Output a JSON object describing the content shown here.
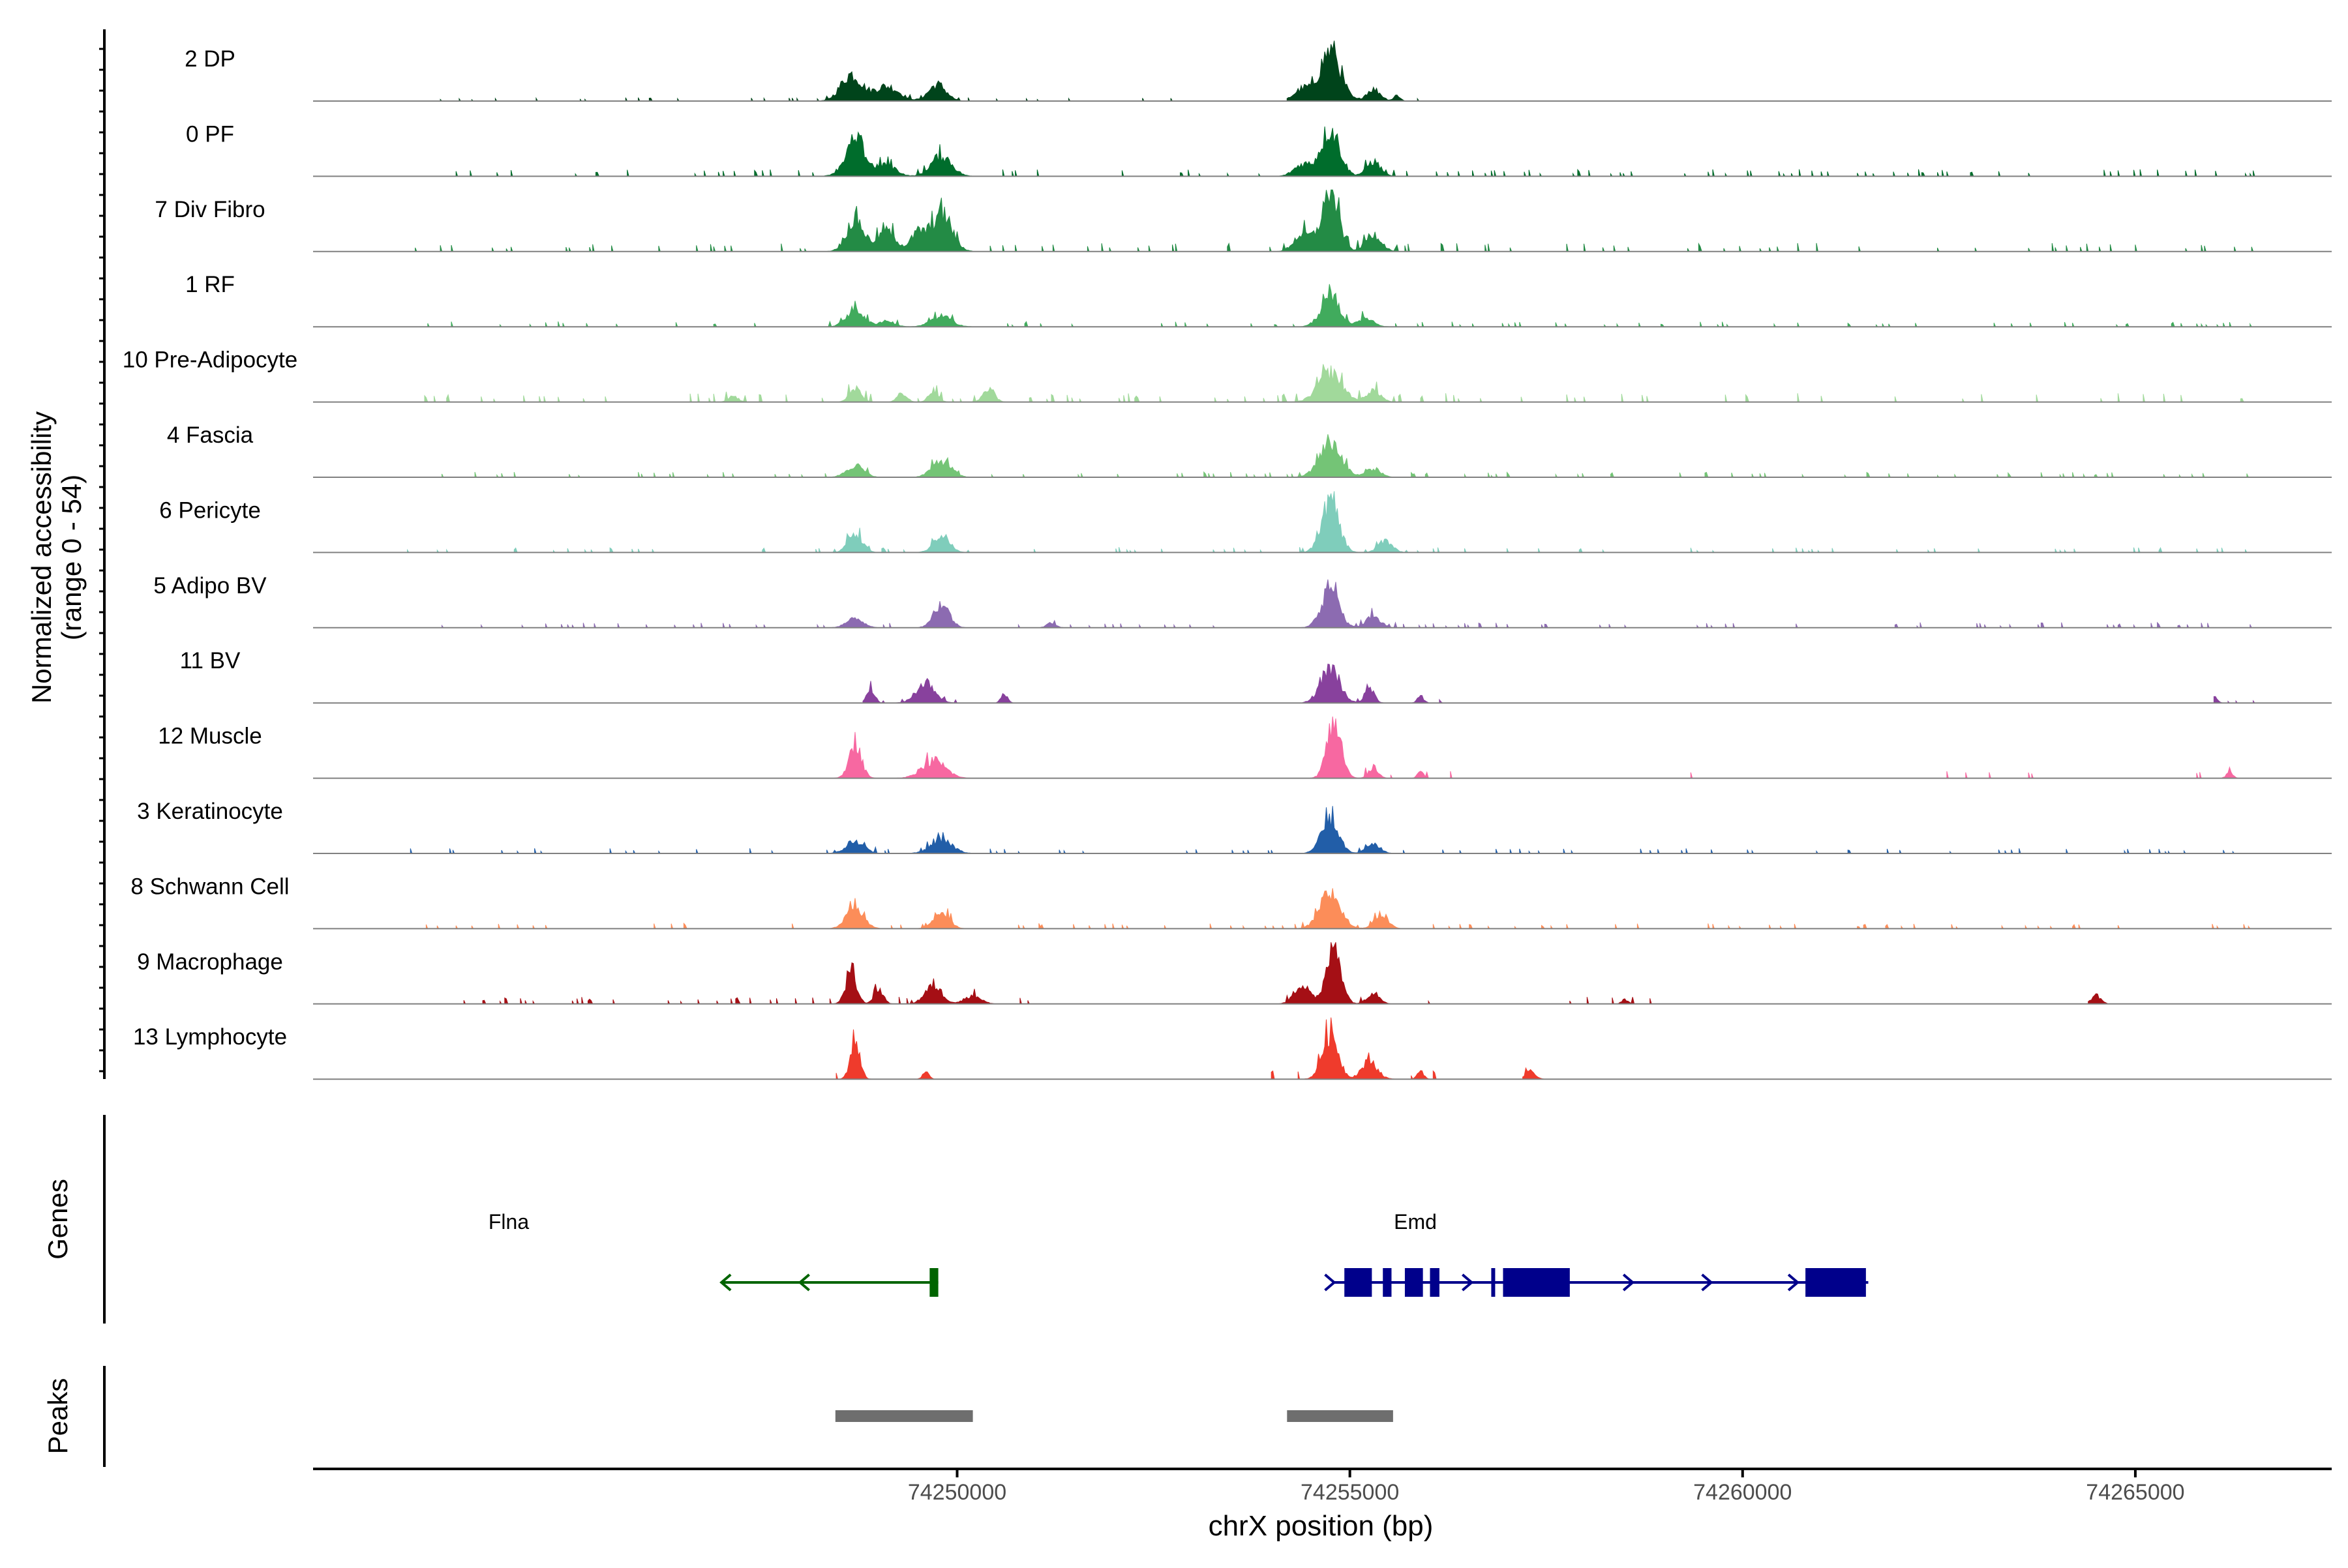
{
  "chart_data": {
    "type": "area",
    "subtype": "genome-browser coverage tracks",
    "xlabel": "chrX position (bp)",
    "ylabel": "Normalized accessibility\n(range 0 - 54)",
    "y_range": [
      0,
      54
    ],
    "xlim": [
      74241800,
      74267500
    ],
    "x_ticks": [
      74250000,
      74255000,
      74260000,
      74265000
    ],
    "x_tick_labels": [
      "74250000",
      "74255000",
      "74260000",
      "74265000"
    ],
    "grid": false,
    "legend": "none",
    "tracks": [
      {
        "name": "2 DP",
        "color": "#00441B",
        "peaks": [
          [
            74248650,
            0.45,
            130
          ],
          [
            74249100,
            0.25,
            160
          ],
          [
            74249750,
            0.28,
            110
          ],
          [
            74254750,
            0.85,
            130
          ],
          [
            74254400,
            0.2,
            110
          ],
          [
            74255300,
            0.2,
            90
          ],
          [
            74255600,
            0.1,
            40
          ]
        ],
        "noise": 0.02,
        "cover": [
          [
            74243300,
            74252800
          ],
          [
            74254200,
            74257200
          ]
        ]
      },
      {
        "name": "0 PF",
        "color": "#006D2C",
        "peaks": [
          [
            74248700,
            0.55,
            130
          ],
          [
            74249100,
            0.2,
            120
          ],
          [
            74249800,
            0.35,
            130
          ],
          [
            74254750,
            0.8,
            120
          ],
          [
            74254400,
            0.2,
            110
          ],
          [
            74255300,
            0.25,
            90
          ]
        ],
        "noise": 0.04,
        "cover": [
          [
            74243000,
            74266500
          ]
        ]
      },
      {
        "name": "7 Div Fibro",
        "color": "#238B45",
        "peaks": [
          [
            74248700,
            0.55,
            110
          ],
          [
            74249100,
            0.35,
            120
          ],
          [
            74249500,
            0.3,
            90
          ],
          [
            74249800,
            0.65,
            130
          ],
          [
            74254750,
            1.0,
            110
          ],
          [
            74254400,
            0.3,
            110
          ],
          [
            74255300,
            0.3,
            100
          ]
        ],
        "noise": 0.05,
        "cover": [
          [
            74243000,
            74266500
          ]
        ]
      },
      {
        "name": "1 RF",
        "color": "#41AB5D",
        "peaks": [
          [
            74248700,
            0.3,
            110
          ],
          [
            74249100,
            0.1,
            100
          ],
          [
            74249800,
            0.18,
            130
          ],
          [
            74254750,
            0.5,
            120
          ],
          [
            74255200,
            0.15,
            100
          ]
        ],
        "noise": 0.03,
        "cover": [
          [
            74243000,
            74266500
          ]
        ]
      },
      {
        "name": "10 Pre-Adipocyte",
        "color": "#A1D99B",
        "peaks": [
          [
            74247150,
            0.1,
            60
          ],
          [
            74248700,
            0.25,
            70
          ],
          [
            74249300,
            0.15,
            60
          ],
          [
            74249700,
            0.2,
            60
          ],
          [
            74250400,
            0.25,
            70
          ],
          [
            74254750,
            0.5,
            150
          ],
          [
            74255300,
            0.2,
            90
          ]
        ],
        "noise": 0.05,
        "cover": [
          [
            74243000,
            74266500
          ]
        ]
      },
      {
        "name": "4 Fascia",
        "color": "#74C476",
        "peaks": [
          [
            74248700,
            0.2,
            110
          ],
          [
            74249800,
            0.28,
            120
          ],
          [
            74254750,
            0.6,
            140
          ],
          [
            74255300,
            0.15,
            90
          ]
        ],
        "noise": 0.03,
        "cover": [
          [
            74243000,
            74266500
          ]
        ]
      },
      {
        "name": "6 Pericyte",
        "color": "#7FCDBB",
        "peaks": [
          [
            74248700,
            0.35,
            90
          ],
          [
            74249800,
            0.3,
            100
          ],
          [
            74254750,
            0.85,
            110
          ],
          [
            74255450,
            0.2,
            90
          ]
        ],
        "noise": 0.03,
        "cover": [
          [
            74243000,
            74266500
          ]
        ]
      },
      {
        "name": "5 Adipo BV",
        "color": "#8C6BB1",
        "peaks": [
          [
            74248700,
            0.15,
            110
          ],
          [
            74249800,
            0.4,
            100
          ],
          [
            74251200,
            0.08,
            60
          ],
          [
            74254750,
            0.7,
            110
          ],
          [
            74255300,
            0.2,
            90
          ]
        ],
        "noise": 0.03,
        "cover": [
          [
            74243000,
            74266500
          ]
        ]
      },
      {
        "name": "11 BV",
        "color": "#88419D",
        "peaks": [
          [
            74248900,
            0.25,
            50
          ],
          [
            74249600,
            0.35,
            120
          ],
          [
            74250600,
            0.15,
            40
          ],
          [
            74254750,
            0.6,
            120
          ],
          [
            74255250,
            0.25,
            60
          ],
          [
            74255900,
            0.12,
            40
          ],
          [
            74266000,
            0.12,
            40
          ]
        ],
        "noise": 0.02,
        "cover": [
          [
            74248800,
            74251500
          ],
          [
            74252300,
            74252700
          ],
          [
            74254400,
            74256400
          ],
          [
            74266000,
            74266500
          ]
        ]
      },
      {
        "name": "12 Muscle",
        "color": "#F768A1",
        "peaks": [
          [
            74248700,
            0.55,
            80
          ],
          [
            74249700,
            0.3,
            150
          ],
          [
            74254800,
            0.95,
            90
          ],
          [
            74255300,
            0.2,
            60
          ],
          [
            74255900,
            0.1,
            40
          ],
          [
            74266200,
            0.1,
            40
          ]
        ],
        "noise": 0.04,
        "cover": [
          [
            74248400,
            74250300
          ],
          [
            74254500,
            74256300
          ],
          [
            74259000,
            74259500
          ],
          [
            74262500,
            74263700
          ],
          [
            74265500,
            74266400
          ]
        ]
      },
      {
        "name": "3 Keratinocyte",
        "color": "#225EA8",
        "peaks": [
          [
            74248700,
            0.22,
            110
          ],
          [
            74249800,
            0.22,
            140
          ],
          [
            74254750,
            0.6,
            110
          ],
          [
            74255300,
            0.15,
            90
          ]
        ],
        "noise": 0.03,
        "cover": [
          [
            74243000,
            74266500
          ]
        ]
      },
      {
        "name": "8 Schwann Cell",
        "color": "#FC8D59",
        "peaks": [
          [
            74248700,
            0.35,
            110
          ],
          [
            74249800,
            0.3,
            100
          ],
          [
            74254750,
            0.6,
            130
          ],
          [
            74255400,
            0.25,
            90
          ]
        ],
        "noise": 0.03,
        "cover": [
          [
            74243000,
            74266500
          ]
        ]
      },
      {
        "name": "9 Macrophage",
        "color": "#A50F15",
        "peaks": [
          [
            74248650,
            0.5,
            70
          ],
          [
            74249000,
            0.25,
            60
          ],
          [
            74249700,
            0.3,
            110
          ],
          [
            74250200,
            0.15,
            100
          ],
          [
            74254800,
            1.0,
            90
          ],
          [
            74254400,
            0.35,
            100
          ],
          [
            74255300,
            0.2,
            80
          ],
          [
            74256500,
            0.08,
            40
          ],
          [
            74258500,
            0.08,
            40
          ],
          [
            74264500,
            0.15,
            60
          ]
        ],
        "noise": 0.04,
        "cover": [
          [
            74243600,
            74251000
          ],
          [
            74254000,
            74256100
          ],
          [
            74257200,
            74259000
          ],
          [
            74264400,
            74264650
          ]
        ]
      },
      {
        "name": "13 Lymphocyte",
        "color": "#EF3B2C",
        "peaks": [
          [
            74248700,
            0.65,
            60
          ],
          [
            74249600,
            0.12,
            40
          ],
          [
            74254750,
            0.8,
            100
          ],
          [
            74255250,
            0.3,
            100
          ],
          [
            74255900,
            0.15,
            40
          ],
          [
            74257300,
            0.15,
            60
          ]
        ],
        "noise": 0.05,
        "cover": [
          [
            74248400,
            74249000
          ],
          [
            74249400,
            74249800
          ],
          [
            74253900,
            74256200
          ],
          [
            74257200,
            74257700
          ]
        ]
      }
    ],
    "genes": [
      {
        "name": "Flna",
        "strand": "-",
        "color": "#006400",
        "start": 74247000,
        "end": 74249760,
        "exons": [
          [
            74249650,
            74249760
          ]
        ],
        "arrows": [
          74247000,
          74248000
        ]
      },
      {
        "name": "Emd",
        "strand": "+",
        "color": "#00008B",
        "start": 74254800,
        "end": 74261600,
        "exons": [
          [
            74254930,
            74255280
          ],
          [
            74255420,
            74255530
          ],
          [
            74255700,
            74255930
          ],
          [
            74256020,
            74256140
          ],
          [
            74256800,
            74256830
          ],
          [
            74256950,
            74257800
          ],
          [
            74260800,
            74261570
          ]
        ],
        "arrows": [
          74254800,
          74256550,
          74258600,
          74259600,
          74260700
        ]
      }
    ],
    "peaks_track": [
      [
        74248450,
        74250200
      ],
      [
        74254200,
        74255550
      ]
    ],
    "panel_labels": [
      "Genes",
      "Peaks"
    ]
  }
}
